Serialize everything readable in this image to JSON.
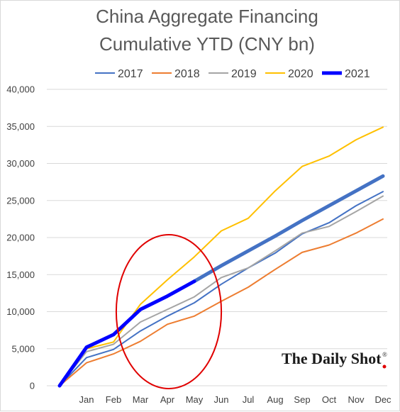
{
  "chart_data": {
    "type": "line",
    "title": [
      "China Aggregate Financing",
      "Cumulative YTD (CNY bn)"
    ],
    "xlabel": "",
    "ylabel": "",
    "categories": [
      "",
      "Jan",
      "Feb",
      "Mar",
      "Apr",
      "May",
      "Jun",
      "Jul",
      "Aug",
      "Sep",
      "Oct",
      "Nov",
      "Dec"
    ],
    "ylim": [
      0,
      40000
    ],
    "yticks": [
      0,
      5000,
      10000,
      15000,
      20000,
      25000,
      30000,
      35000,
      40000
    ],
    "ytick_labels": [
      "0",
      "5,000",
      "10,000",
      "15,000",
      "20,000",
      "25,000",
      "30,000",
      "35,000",
      "40,000"
    ],
    "grid": true,
    "legend_position": "top",
    "series": [
      {
        "name": "2017",
        "color": "#4472c4",
        "width": 2,
        "values": [
          0,
          3800,
          4900,
          7400,
          9400,
          11200,
          13700,
          15900,
          17900,
          20500,
          22000,
          24300,
          26200
        ]
      },
      {
        "name": "2018",
        "color": "#ed7d31",
        "width": 2,
        "values": [
          0,
          3100,
          4300,
          6000,
          8300,
          9400,
          11400,
          13300,
          15700,
          18000,
          19000,
          20600,
          22500
        ]
      },
      {
        "name": "2019",
        "color": "#a5a5a5",
        "width": 2,
        "values": [
          0,
          4600,
          5600,
          8600,
          10300,
          12000,
          14600,
          15900,
          18200,
          20600,
          21500,
          23500,
          25600
        ]
      },
      {
        "name": "2020",
        "color": "#ffc000",
        "width": 2,
        "values": [
          0,
          5000,
          5900,
          11000,
          14300,
          17400,
          20900,
          22600,
          26300,
          29600,
          31000,
          33200,
          34900
        ]
      },
      {
        "name": "2021",
        "color": "#0000ff",
        "width": 5,
        "values": [
          0,
          5200,
          6900,
          10300,
          12100,
          14100,
          null,
          null,
          null,
          null,
          null,
          null,
          null
        ]
      }
    ],
    "extra_line": {
      "color": "#4472c4",
      "width": 5,
      "values": [
        null,
        null,
        null,
        null,
        null,
        14100,
        16200,
        18200,
        20200,
        22300,
        24300,
        26300,
        28300
      ]
    },
    "annotations": [
      {
        "type": "ellipse",
        "color": "#e00000",
        "description": "circle highlighting Mar-May"
      }
    ],
    "watermark": "The Daily Shot",
    "watermark_mark": "®"
  }
}
